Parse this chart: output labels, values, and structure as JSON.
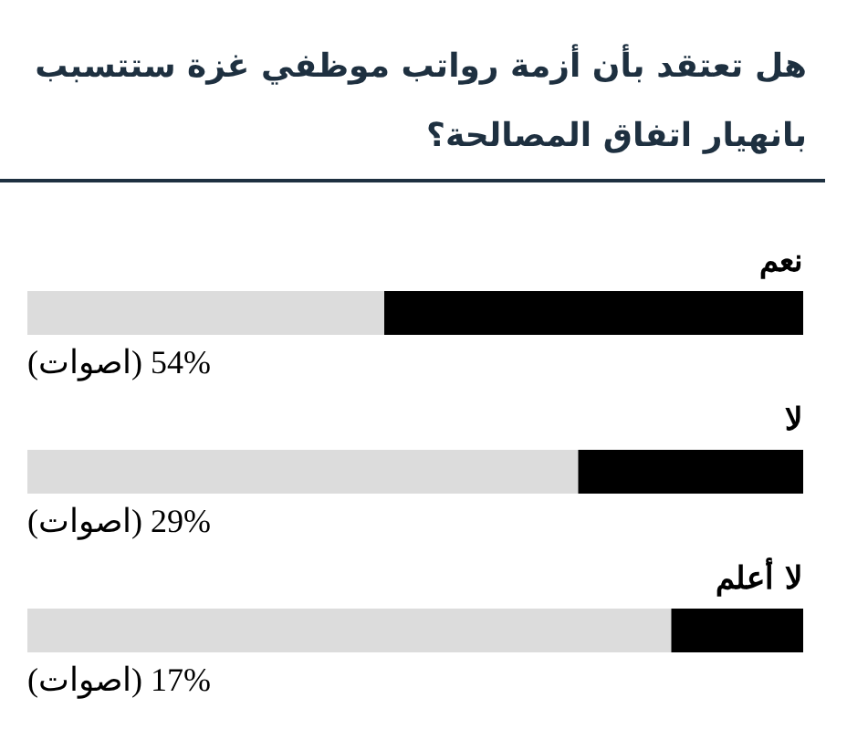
{
  "chart_data": {
    "type": "bar",
    "orientation": "horizontal",
    "title": "هل تعتقد بأن أزمة رواتب موظفي غزة ستتسبب بانهيار اتفاق المصالحة؟",
    "categories": [
      "نعم",
      "لا",
      "لا أعلم"
    ],
    "values": [
      54,
      29,
      17
    ],
    "color": "#000000",
    "xlim": [
      100,
      0
    ],
    "value_labels": [
      "(اصوات)  54%",
      "(اصوات)  29%",
      "(اصوات)  17%"
    ],
    "tick_labels": "y"
  }
}
